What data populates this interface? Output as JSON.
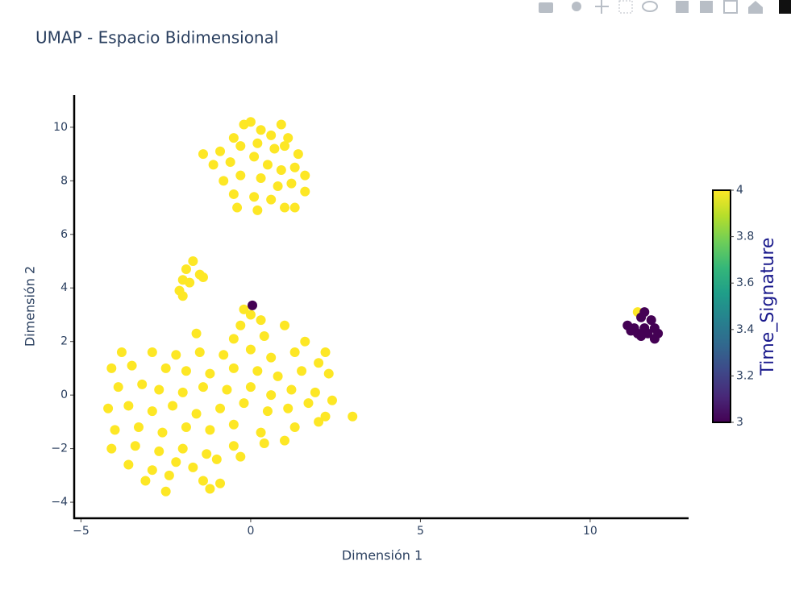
{
  "chart_data": {
    "type": "scatter",
    "title": "UMAP - Espacio Bidimensional",
    "x_label": "Dimensión 1",
    "y_label": "Dimensión 2",
    "xlim": [
      -5.2,
      12.9
    ],
    "ylim": [
      -4.6,
      11.2
    ],
    "xticks": [
      {
        "value": -5,
        "label": "−5"
      },
      0,
      5,
      10
    ],
    "yticks": [
      {
        "value": -4,
        "label": "−4"
      },
      {
        "value": -2,
        "label": "−2"
      },
      0,
      2,
      4,
      6,
      8,
      10
    ],
    "x": [
      -0.2,
      0.0,
      0.3,
      0.6,
      0.9,
      1.1,
      -0.5,
      -0.9,
      -0.3,
      0.2,
      0.7,
      1.0,
      1.4,
      -1.1,
      -0.6,
      0.1,
      0.5,
      0.9,
      1.3,
      1.6,
      -0.8,
      -0.3,
      0.3,
      0.8,
      1.2,
      -0.5,
      0.1,
      0.6,
      1.0,
      1.3,
      -0.4,
      0.2,
      1.6,
      -1.4,
      -1.7,
      -1.9,
      -1.5,
      -2.0,
      -1.8,
      -2.1,
      -2.0,
      -1.4,
      -0.2,
      0.0,
      -0.3,
      0.3,
      1.0,
      -1.6,
      -0.5,
      0.4,
      1.6,
      2.2,
      -3.8,
      -2.9,
      -2.2,
      -1.5,
      -0.8,
      0.0,
      0.6,
      1.3,
      2.0,
      -4.1,
      -3.5,
      -2.5,
      -1.9,
      -1.2,
      -0.5,
      0.2,
      0.8,
      1.5,
      2.3,
      -3.9,
      -3.2,
      -2.7,
      -2.0,
      -1.4,
      -0.7,
      0.0,
      0.6,
      1.2,
      1.9,
      2.4,
      -4.2,
      -3.6,
      -2.9,
      -2.3,
      -1.6,
      -0.9,
      -0.2,
      0.5,
      1.1,
      1.7,
      2.2,
      3.0,
      -4.0,
      -3.3,
      -2.6,
      -1.9,
      -1.2,
      -0.5,
      0.3,
      1.3,
      2.0,
      -4.1,
      -3.4,
      -2.7,
      -2.0,
      -1.3,
      -0.5,
      0.4,
      1.0,
      -3.6,
      -2.9,
      -2.2,
      -1.7,
      -1.0,
      -0.3,
      -3.1,
      -2.4,
      -1.4,
      -0.9,
      -2.5,
      -1.2,
      11.4,
      11.6,
      11.5,
      11.8,
      11.1,
      11.3,
      11.6,
      11.9,
      11.4,
      11.7,
      12.0,
      11.5,
      11.9,
      11.2,
      0.05
    ],
    "y": [
      10.1,
      10.2,
      9.9,
      9.7,
      10.1,
      9.6,
      9.6,
      9.1,
      9.3,
      9.4,
      9.2,
      9.3,
      9.0,
      8.6,
      8.7,
      8.9,
      8.6,
      8.4,
      8.5,
      8.2,
      8.0,
      8.2,
      8.1,
      7.8,
      7.9,
      7.5,
      7.4,
      7.3,
      7.0,
      7.0,
      7.0,
      6.9,
      7.6,
      9.0,
      5.0,
      4.7,
      4.5,
      4.3,
      4.2,
      3.9,
      3.7,
      4.4,
      3.2,
      3.0,
      2.6,
      2.8,
      2.6,
      2.3,
      2.1,
      2.2,
      2.0,
      1.6,
      1.6,
      1.6,
      1.5,
      1.6,
      1.5,
      1.7,
      1.4,
      1.6,
      1.2,
      1.0,
      1.1,
      1.0,
      0.9,
      0.8,
      1.0,
      0.9,
      0.7,
      0.9,
      0.8,
      0.3,
      0.4,
      0.2,
      0.1,
      0.3,
      0.2,
      0.3,
      0.0,
      0.2,
      0.1,
      -0.2,
      -0.5,
      -0.4,
      -0.6,
      -0.4,
      -0.7,
      -0.5,
      -0.3,
      -0.6,
      -0.5,
      -0.3,
      -0.8,
      -0.8,
      -1.3,
      -1.2,
      -1.4,
      -1.2,
      -1.3,
      -1.1,
      -1.4,
      -1.2,
      -1.0,
      -2.0,
      -1.9,
      -2.1,
      -2.0,
      -2.2,
      -1.9,
      -1.8,
      -1.7,
      -2.6,
      -2.8,
      -2.5,
      -2.7,
      -2.4,
      -2.3,
      -3.2,
      -3.0,
      -3.2,
      -3.3,
      -3.6,
      -3.5,
      3.1,
      3.1,
      2.9,
      2.8,
      2.6,
      2.5,
      2.5,
      2.5,
      2.3,
      2.3,
      2.3,
      2.2,
      2.1,
      2.4,
      3.35
    ],
    "color_values": [
      4,
      4,
      4,
      4,
      4,
      4,
      4,
      4,
      4,
      4,
      4,
      4,
      4,
      4,
      4,
      4,
      4,
      4,
      4,
      4,
      4,
      4,
      4,
      4,
      4,
      4,
      4,
      4,
      4,
      4,
      4,
      4,
      4,
      4,
      4,
      4,
      4,
      4,
      4,
      4,
      4,
      4,
      4,
      4,
      4,
      4,
      4,
      4,
      4,
      4,
      4,
      4,
      4,
      4,
      4,
      4,
      4,
      4,
      4,
      4,
      4,
      4,
      4,
      4,
      4,
      4,
      4,
      4,
      4,
      4,
      4,
      4,
      4,
      4,
      4,
      4,
      4,
      4,
      4,
      4,
      4,
      4,
      4,
      4,
      4,
      4,
      4,
      4,
      4,
      4,
      4,
      4,
      4,
      4,
      4,
      4,
      4,
      4,
      4,
      4,
      4,
      4,
      4,
      4,
      4,
      4,
      4,
      4,
      4,
      4,
      4,
      4,
      4,
      4,
      4,
      4,
      4,
      4,
      4,
      4,
      4,
      4,
      4,
      4,
      3,
      3,
      3,
      3,
      3,
      3,
      3,
      3,
      3,
      3,
      3,
      3,
      3,
      3,
      3
    ],
    "colorscale": [
      "#440154",
      "#482878",
      "#3e4989",
      "#31688e",
      "#26828e",
      "#1f9e89",
      "#35b779",
      "#6ece58",
      "#b5de2b",
      "#fde725"
    ],
    "colorbar_title": "Time_Signature",
    "colorbar_lim": [
      3,
      4
    ],
    "colorbar_ticks": [
      3,
      3.2,
      3.4,
      3.6,
      3.8,
      4
    ]
  }
}
